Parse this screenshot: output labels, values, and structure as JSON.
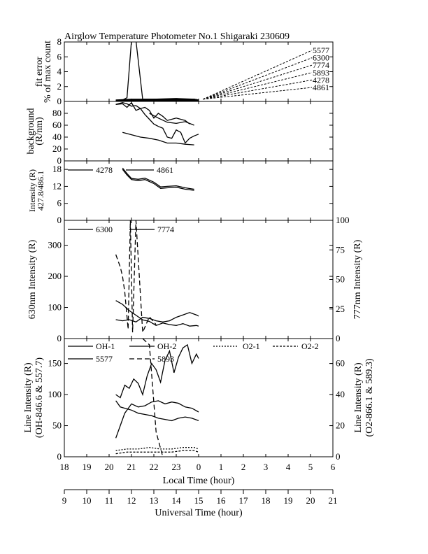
{
  "chart_data": {
    "type": "line",
    "title": "Airglow Temperature Photometer No.1  Shigaraki  230609",
    "x_axis": {
      "label": "Local Time (hour)",
      "range": [
        18,
        30
      ],
      "ticks": [
        "18",
        "19",
        "20",
        "21",
        "22",
        "23",
        "0",
        "1",
        "2",
        "3",
        "4",
        "5",
        "6"
      ]
    },
    "x2_axis": {
      "label": "Universal Time (hour)",
      "ticks": [
        "9",
        "10",
        "11",
        "12",
        "13",
        "14",
        "15",
        "16",
        "17",
        "18",
        "19",
        "20",
        "21"
      ]
    },
    "panels": [
      {
        "id": "fit-error",
        "ylabel": [
          "fit error",
          "% of max count"
        ],
        "ylim": [
          0,
          8
        ],
        "yticks": [
          "0",
          "2",
          "4",
          "6",
          "8"
        ],
        "legend": [
          "5577",
          "6300",
          "7774",
          "5893",
          "4278",
          "4861"
        ],
        "series": [
          {
            "name": "5577",
            "dash": "",
            "x": [
              20.3,
              20.6,
              20.8,
              21.0,
              21.2,
              21.5,
              21.8,
              22.2,
              22.6,
              23.0,
              23.4,
              23.8,
              24.0
            ],
            "y": [
              0.1,
              0.2,
              0.5,
              8.2,
              8.2,
              0.3,
              0.3,
              0.3,
              0.2,
              0.3,
              0.2,
              0.3,
              0.2
            ]
          },
          {
            "name": "6300",
            "dash": "",
            "x": [
              20.3,
              21.0,
              22.0,
              23.0,
              23.8,
              24.0
            ],
            "y": [
              0.2,
              0.3,
              0.3,
              0.4,
              0.3,
              0.2
            ]
          },
          {
            "name": "7774",
            "dash": "",
            "x": [
              20.3,
              21.0,
              22.0,
              23.0,
              23.8,
              24.0
            ],
            "y": [
              0.1,
              0.2,
              0.2,
              0.2,
              0.2,
              0.1
            ]
          },
          {
            "name": "5893",
            "dash": "",
            "x": [
              20.3,
              21.0,
              22.0,
              23.0,
              23.8,
              24.0
            ],
            "y": [
              0.15,
              0.2,
              0.25,
              0.3,
              0.25,
              0.15
            ]
          },
          {
            "name": "4278",
            "dash": "",
            "x": [
              20.3,
              21.0,
              22.0,
              23.0,
              23.8,
              24.0
            ],
            "y": [
              0.05,
              0.1,
              0.1,
              0.1,
              0.1,
              0.05
            ]
          },
          {
            "name": "4861",
            "dash": "",
            "x": [
              20.3,
              21.0,
              22.0,
              23.0,
              23.8,
              24.0
            ],
            "y": [
              0.08,
              0.12,
              0.1,
              0.12,
              0.1,
              0.08
            ]
          }
        ]
      },
      {
        "id": "background",
        "ylabel": [
          "background",
          "(R/nm)"
        ],
        "ylim": [
          0,
          100
        ],
        "yticks": [
          "0",
          "20",
          "40",
          "60",
          "80"
        ],
        "series": [
          {
            "name": "bg1",
            "dash": "",
            "x": [
              20.3,
              20.6,
              20.8,
              21.0,
              21.2,
              21.4,
              21.6,
              21.8,
              22.0,
              22.2,
              22.4,
              22.6,
              22.8,
              23.0,
              23.2,
              23.4,
              23.6
            ],
            "y": [
              95,
              98,
              96,
              92,
              93,
              88,
              90,
              85,
              72,
              80,
              75,
              68,
              70,
              72,
              70,
              68,
              62
            ]
          },
          {
            "name": "bg2",
            "dash": "",
            "x": [
              20.3,
              20.6,
              20.8,
              21.0,
              21.2,
              21.4,
              21.6,
              21.8,
              22.0,
              22.2,
              22.4,
              22.6,
              22.8,
              23.0,
              23.2,
              23.4,
              23.6,
              23.8,
              24.0
            ],
            "y": [
              95,
              96,
              90,
              98,
              85,
              88,
              78,
              70,
              62,
              58,
              55,
              40,
              38,
              52,
              48,
              30,
              38,
              42,
              45
            ]
          },
          {
            "name": "bg3",
            "dash": "",
            "x": [
              20.6,
              21.0,
              21.4,
              21.8,
              22.2,
              22.6,
              23.0,
              23.4,
              23.8
            ],
            "y": [
              48,
              44,
              40,
              38,
              35,
              30,
              30,
              28,
              27
            ]
          },
          {
            "name": "bg4",
            "dash": "",
            "x": [
              21.8,
              22.2,
              22.6,
              23.0,
              23.4,
              23.8
            ],
            "y": [
              80,
              72,
              65,
              63,
              66,
              60
            ]
          }
        ]
      },
      {
        "id": "intensity-427-486",
        "ylabel": [
          "Intensity (R)",
          "427.8/486.1"
        ],
        "ylim": [
          0,
          21
        ],
        "yticks": [
          "0",
          "6",
          "12",
          "18"
        ],
        "legend": [
          "4278",
          "4861"
        ],
        "series": [
          {
            "name": "4278",
            "dash": "",
            "x": [
              20.6,
              20.8,
              21.0,
              21.3,
              21.6,
              22.0,
              22.3,
              22.6,
              23.0,
              23.4,
              23.8
            ],
            "y": [
              18.5,
              16.5,
              14.8,
              14.5,
              14.9,
              13.5,
              11.8,
              12.0,
              12.2,
              11.5,
              11.0
            ]
          },
          {
            "name": "4861",
            "dash": "",
            "x": [
              20.6,
              20.8,
              21.0,
              21.3,
              21.6,
              22.0,
              22.3,
              22.6,
              23.0,
              23.4,
              23.8
            ],
            "y": [
              18.0,
              16.0,
              14.4,
              14.0,
              14.4,
              13.0,
              11.3,
              11.5,
              11.7,
              11.0,
              10.6
            ]
          }
        ]
      },
      {
        "id": "630-777",
        "ylabel": "630nm Intensity (R)",
        "y2label": "777nm Intensity (R)",
        "ylim": [
          0,
          380
        ],
        "y2lim": [
          0,
          100
        ],
        "yticks": [
          "0",
          "100",
          "200",
          "300"
        ],
        "y2ticks": [
          "0",
          "25",
          "50",
          "75",
          "100"
        ],
        "legend": [
          "6300",
          "7774"
        ],
        "series": [
          {
            "name": "6300 solid",
            "dash": "",
            "axis": "left",
            "x": [
              20.3,
              20.6,
              20.9,
              21.2,
              21.5,
              21.8,
              22.1,
              22.4,
              22.7,
              23.0,
              23.3,
              23.6,
              23.9,
              24.0
            ],
            "y": [
              122,
              110,
              90,
              75,
              60,
              55,
              42,
              50,
              45,
              42,
              48,
              40,
              42,
              40
            ]
          },
          {
            "name": "6300 dashed",
            "dash": "7,4",
            "axis": "left",
            "x": [
              20.3,
              20.5,
              20.6,
              20.7,
              20.85,
              20.95,
              21.05,
              21.2,
              21.5,
              21.8,
              22.1
            ],
            "y": [
              270,
              230,
              200,
              150,
              30,
              380,
              20,
              380,
              20,
              70,
              45
            ]
          },
          {
            "name": "7774",
            "dash": "",
            "axis": "right",
            "x": [
              20.3,
              20.6,
              20.9,
              21.2,
              21.5,
              21.8,
              22.1,
              22.4,
              22.7,
              23.0,
              23.3,
              23.6,
              23.9,
              24.0
            ],
            "y": [
              16,
              15,
              16,
              14,
              18,
              17,
              15,
              14,
              15,
              18,
              20,
              22,
              20,
              19
            ]
          }
        ]
      },
      {
        "id": "line-intensity",
        "ylabel": [
          "Line Intensity (R)",
          "(OH-846.6 & 557.7)"
        ],
        "y2label": [
          "Line Intensity (R)",
          "(O2-866.1 & 589.3)"
        ],
        "ylim": [
          0,
          190
        ],
        "y2lim": [
          0,
          76
        ],
        "yticks": [
          "0",
          "50",
          "100",
          "150"
        ],
        "y2ticks": [
          "0",
          "20",
          "40",
          "60"
        ],
        "legend": [
          "OH-1",
          "OH-2",
          "O2-1",
          "O2-2",
          "5577",
          "5893"
        ],
        "series": [
          {
            "name": "OH-1",
            "dash": "",
            "axis": "left",
            "x": [
              20.3,
              20.5,
              20.7,
              21.0,
              21.3,
              21.6,
              21.9,
              22.2,
              22.5,
              22.8,
              23.1,
              23.4,
              23.7,
              24.0
            ],
            "y": [
              90,
              80,
              78,
              75,
              70,
              68,
              66,
              62,
              60,
              58,
              62,
              64,
              62,
              58
            ]
          },
          {
            "name": "OH-2",
            "dash": "",
            "axis": "left",
            "x": [
              20.3,
              20.5,
              20.7,
              21.0,
              21.3,
              21.6,
              21.9,
              22.2,
              22.5,
              22.8,
              23.1,
              23.4,
              23.7,
              24.0
            ],
            "y": [
              30,
              50,
              70,
              85,
              80,
              82,
              88,
              90,
              85,
              88,
              86,
              80,
              78,
              72
            ]
          },
          {
            "name": "5577",
            "dash": "",
            "axis": "left",
            "x": [
              20.3,
              20.5,
              20.7,
              20.9,
              21.1,
              21.3,
              21.5,
              21.7,
              21.9,
              22.1,
              22.3,
              22.5,
              22.7,
              22.9,
              23.1,
              23.3,
              23.5,
              23.7,
              23.9,
              24.0
            ],
            "y": [
              100,
              95,
              115,
              110,
              125,
              118,
              100,
              130,
              150,
              140,
              120,
              155,
              170,
              135,
              160,
              175,
              180,
              150,
              165,
              158
            ]
          },
          {
            "name": "5893",
            "dash": "7,4",
            "axis": "left",
            "x": [
              21.5,
              21.8,
              22.1,
              22.4
            ],
            "y": [
              190,
              180,
              40,
              0
            ]
          },
          {
            "name": "O2-1",
            "dash": "2,2",
            "axis": "right",
            "x": [
              20.3,
              20.8,
              21.3,
              21.8,
              22.3,
              22.8,
              23.3,
              23.8,
              24.0
            ],
            "y": [
              4,
              5,
              5,
              6,
              5,
              5,
              6,
              6,
              5
            ]
          },
          {
            "name": "O2-2",
            "dash": "3,2",
            "axis": "right",
            "x": [
              20.3,
              20.8,
              21.3,
              21.8,
              22.3,
              22.8,
              23.3,
              23.8,
              24.0
            ],
            "y": [
              2,
              3,
              3,
              3,
              3,
              3,
              4,
              4,
              3
            ]
          }
        ]
      }
    ]
  }
}
